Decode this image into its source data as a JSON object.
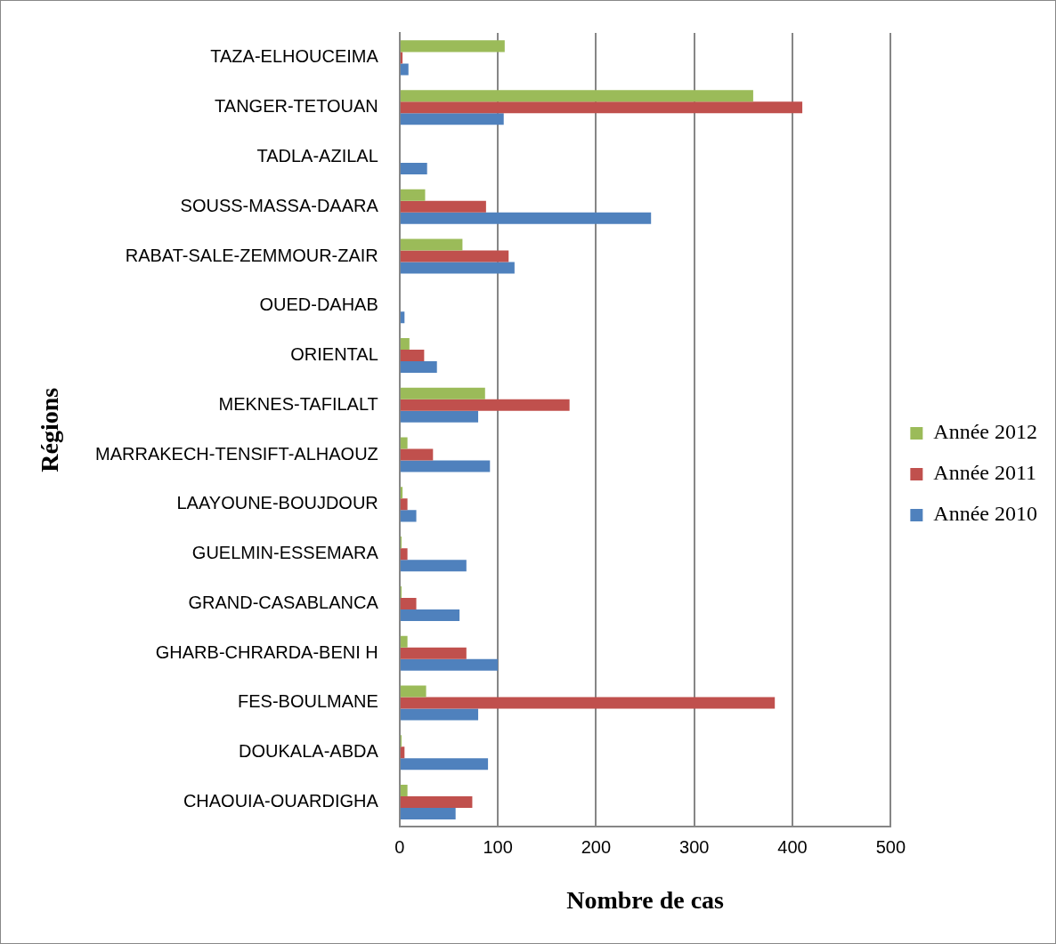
{
  "chart_data": {
    "type": "bar",
    "orientation": "horizontal",
    "xlabel": "Nombre de cas",
    "ylabel": "Régions",
    "categories": [
      "TAZA-ELHOUCEIMA",
      "TANGER-TETOUAN",
      "TADLA-AZILAL",
      "SOUSS-MASSA-DAARA",
      "RABAT-SALE-ZEMMOUR-ZAIR",
      "OUED-DAHAB",
      "ORIENTAL",
      "MEKNES-TAFILALT",
      "MARRAKECH-TENSIFT-ALHAOUZ",
      "LAAYOUNE-BOUJDOUR",
      "GUELMIN-ESSEMARA",
      "GRAND-CASABLANCA",
      "GHARB-CHRARDA-BENI H",
      "FES-BOULMANE",
      "DOUKALA-ABDA",
      "CHAOUIA-OUARDIGHA"
    ],
    "series": [
      {
        "name": "Année 2012",
        "color": "#9bbb59",
        "values": [
          107,
          360,
          null,
          26,
          64,
          null,
          10,
          87,
          8,
          3,
          2,
          2,
          8,
          27,
          2,
          8
        ]
      },
      {
        "name": "Année 2011",
        "color": "#c0504d",
        "values": [
          3,
          410,
          null,
          88,
          111,
          null,
          25,
          173,
          34,
          8,
          8,
          17,
          68,
          382,
          5,
          74
        ]
      },
      {
        "name": "Année 2010",
        "color": "#4f81bd",
        "values": [
          9,
          106,
          28,
          256,
          117,
          5,
          38,
          80,
          92,
          17,
          68,
          61,
          100,
          80,
          90,
          57
        ]
      }
    ],
    "xlim": [
      0,
      500
    ],
    "xticks": [
      0,
      100,
      200,
      300,
      400,
      500
    ],
    "grid": "x",
    "legend": "right"
  }
}
